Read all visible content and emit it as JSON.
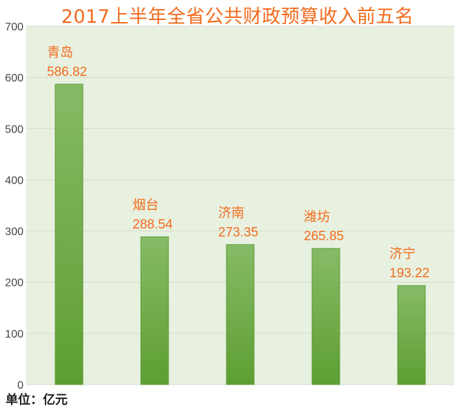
{
  "chart_data": {
    "type": "bar",
    "title": "2017上半年全省公共财政预算收入前五名",
    "categories": [
      "青岛",
      "烟台",
      "济南",
      "潍坊",
      "济宁"
    ],
    "values": [
      586.82,
      288.54,
      273.35,
      265.85,
      193.22
    ],
    "value_labels": [
      "586.82",
      "288.54",
      "273.35",
      "265.85",
      "193.22"
    ],
    "yticks": [
      "0",
      "100",
      "200",
      "300",
      "400",
      "500",
      "600",
      "700"
    ],
    "ylim": [
      0,
      700
    ],
    "grid": true,
    "legend": "none",
    "unit": "单位：亿元",
    "colors": {
      "bar_top": "#86bb66",
      "bar_bottom": "#5e9e32",
      "bar_stroke": "#5a9a36",
      "plot_bg": "#e8f1e0",
      "label": "#f26b1d",
      "grid": "#d3dccb"
    }
  }
}
